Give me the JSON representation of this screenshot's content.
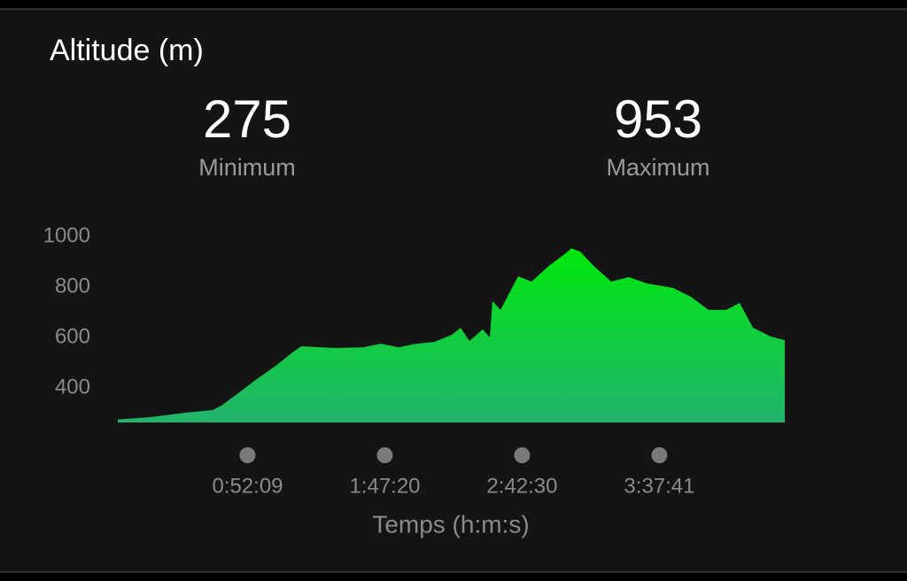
{
  "chart_data": {
    "type": "area",
    "title": "Altitude (m)",
    "stats": [
      {
        "value": 275,
        "label": "Minimum"
      },
      {
        "value": 953,
        "label": "Maximum"
      }
    ],
    "x_label": "Temps (h:m:s)",
    "x": [
      0,
      790,
      1645,
      2286,
      2499,
      2926,
      3353,
      3780,
      4207,
      4422,
      5276,
      5917,
      6344,
      6771,
      7198,
      7626,
      8053,
      8266,
      8480,
      8800,
      8971,
      9035,
      9228,
      9655,
      9975,
      10402,
      10829,
      10936,
      11150,
      11470,
      11898,
      12325,
      12752,
      13393,
      13820,
      14247,
      14674,
      14995,
      15315,
      15742,
      16084
    ],
    "values": [
      275,
      284,
      302,
      312,
      330,
      382,
      435,
      484,
      540,
      565,
      558,
      561,
      575,
      561,
      575,
      582,
      610,
      638,
      586,
      632,
      600,
      744,
      709,
      842,
      821,
      884,
      937,
      953,
      940,
      884,
      821,
      839,
      814,
      796,
      761,
      709,
      709,
      737,
      639,
      604,
      589
    ],
    "xlim": [
      0,
      16084
    ],
    "ylim": [
      263,
      1000
    ],
    "xticks": [
      {
        "value": 3129,
        "label": "0:52:09"
      },
      {
        "value": 6440,
        "label": "1:47:20"
      },
      {
        "value": 9750,
        "label": "2:42:30"
      },
      {
        "value": 13061,
        "label": "3:37:41"
      }
    ],
    "yticks": [
      400,
      600,
      800,
      1000
    ],
    "grid": false
  }
}
